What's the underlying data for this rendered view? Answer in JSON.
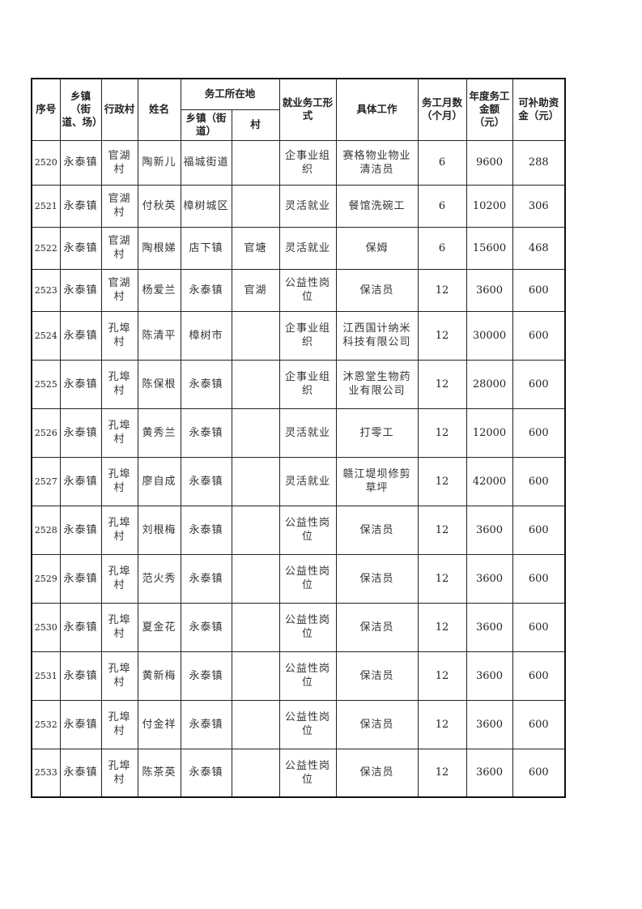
{
  "header": {
    "seq": "序号",
    "town": "乡镇（街道、场）",
    "village": "行政村",
    "name": "姓名",
    "work_location": "务工所在地",
    "work_town": "乡镇（街道）",
    "work_village": "村",
    "employment_form": "就业务工形式",
    "job": "具体工作",
    "months": "务工月数（个月）",
    "annual_income": "年度务工金额（元）",
    "subsidy": "可补助资金（元）"
  },
  "rows": [
    {
      "seq": "2520",
      "town": "永泰镇",
      "village": "官湖村",
      "name": "陶新儿",
      "work_town": "福城街道",
      "work_village": "",
      "form": "企事业组织",
      "job": "赛格物业物业清洁员",
      "months": "6",
      "income": "9600",
      "subsidy": "288"
    },
    {
      "seq": "2521",
      "town": "永泰镇",
      "village": "官湖村",
      "name": "付秋英",
      "work_town": "樟树城区",
      "work_village": "",
      "form": "灵活就业",
      "job": "餐馆洗碗工",
      "months": "6",
      "income": "10200",
      "subsidy": "306"
    },
    {
      "seq": "2522",
      "town": "永泰镇",
      "village": "官湖村",
      "name": "陶根娣",
      "work_town": "店下镇",
      "work_village": "官塘",
      "form": "灵活就业",
      "job": "保姆",
      "months": "6",
      "income": "15600",
      "subsidy": "468"
    },
    {
      "seq": "2523",
      "town": "永泰镇",
      "village": "官湖村",
      "name": "杨爱兰",
      "work_town": "永泰镇",
      "work_village": "官湖",
      "form": "公益性岗位",
      "job": "保洁员",
      "months": "12",
      "income": "3600",
      "subsidy": "600"
    },
    {
      "seq": "2524",
      "town": "永泰镇",
      "village": "孔埠村",
      "name": "陈清平",
      "work_town": "樟树市",
      "work_village": "",
      "form": "企事业组织",
      "job": "江西国计纳米科技有限公司",
      "months": "12",
      "income": "30000",
      "subsidy": "600"
    },
    {
      "seq": "2525",
      "town": "永泰镇",
      "village": "孔埠村",
      "name": "陈保根",
      "work_town": "永泰镇",
      "work_village": "",
      "form": "企事业组织",
      "job": "沐恩堂生物药业有限公司",
      "months": "12",
      "income": "28000",
      "subsidy": "600"
    },
    {
      "seq": "2526",
      "town": "永泰镇",
      "village": "孔埠村",
      "name": "黄秀兰",
      "work_town": "永泰镇",
      "work_village": "",
      "form": "灵活就业",
      "job": "打零工",
      "months": "12",
      "income": "12000",
      "subsidy": "600"
    },
    {
      "seq": "2527",
      "town": "永泰镇",
      "village": "孔埠村",
      "name": "廖自成",
      "work_town": "永泰镇",
      "work_village": "",
      "form": "灵活就业",
      "job": "赣江堤坝修剪草坪",
      "months": "12",
      "income": "42000",
      "subsidy": "600"
    },
    {
      "seq": "2528",
      "town": "永泰镇",
      "village": "孔埠村",
      "name": "刘根梅",
      "work_town": "永泰镇",
      "work_village": "",
      "form": "公益性岗位",
      "job": "保洁员",
      "months": "12",
      "income": "3600",
      "subsidy": "600"
    },
    {
      "seq": "2529",
      "town": "永泰镇",
      "village": "孔埠村",
      "name": "范火秀",
      "work_town": "永泰镇",
      "work_village": "",
      "form": "公益性岗位",
      "job": "保洁员",
      "months": "12",
      "income": "3600",
      "subsidy": "600"
    },
    {
      "seq": "2530",
      "town": "永泰镇",
      "village": "孔埠村",
      "name": "夏金花",
      "work_town": "永泰镇",
      "work_village": "",
      "form": "公益性岗位",
      "job": "保洁员",
      "months": "12",
      "income": "3600",
      "subsidy": "600"
    },
    {
      "seq": "2531",
      "town": "永泰镇",
      "village": "孔埠村",
      "name": "黄新梅",
      "work_town": "永泰镇",
      "work_village": "",
      "form": "公益性岗位",
      "job": "保洁员",
      "months": "12",
      "income": "3600",
      "subsidy": "600"
    },
    {
      "seq": "2532",
      "town": "永泰镇",
      "village": "孔埠村",
      "name": "付金祥",
      "work_town": "永泰镇",
      "work_village": "",
      "form": "公益性岗位",
      "job": "保洁员",
      "months": "12",
      "income": "3600",
      "subsidy": "600"
    },
    {
      "seq": "2533",
      "town": "永泰镇",
      "village": "孔埠村",
      "name": "陈茶英",
      "work_town": "永泰镇",
      "work_village": "",
      "form": "公益性岗位",
      "job": "保洁员",
      "months": "12",
      "income": "3600",
      "subsidy": "600"
    }
  ]
}
